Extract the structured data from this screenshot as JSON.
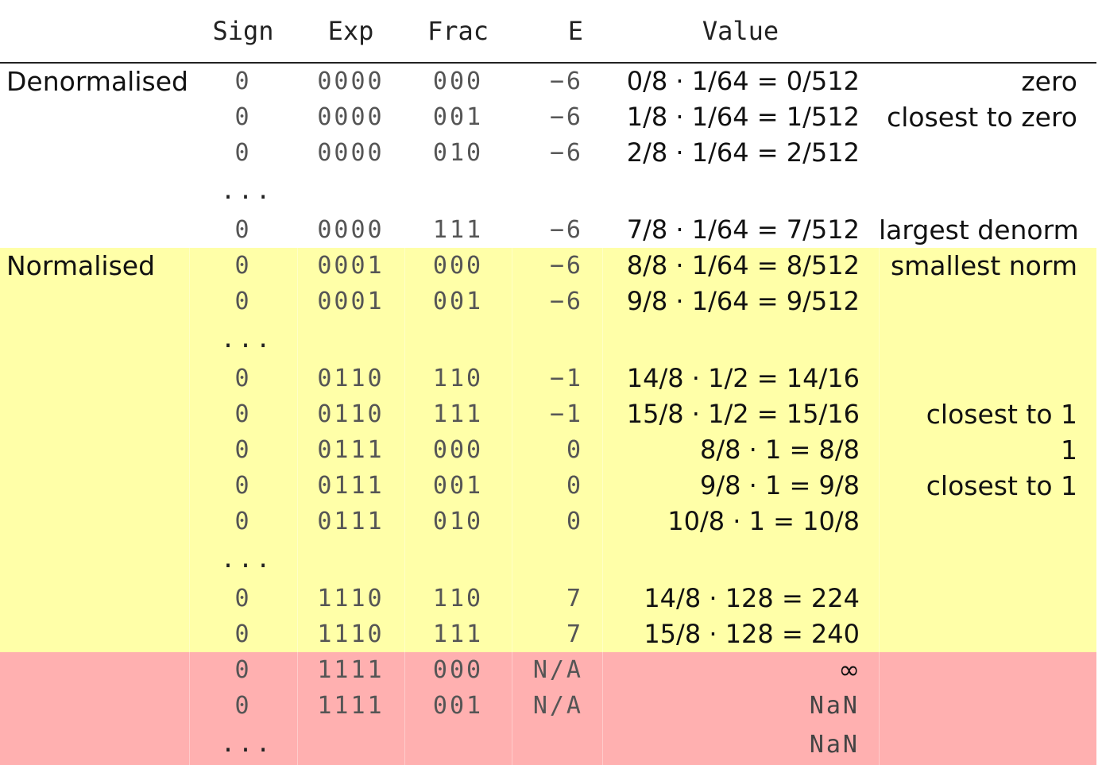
{
  "header": {
    "sign": "Sign",
    "exp": "Exp",
    "frac": "Frac",
    "e": "E",
    "value": "Value"
  },
  "rows": [
    {
      "group": "denorm",
      "category": "Denormalised",
      "sign": "0",
      "exp": "0000",
      "frac": "000",
      "e": "−6",
      "value": "0/8 · 1/64 = 0/512",
      "note": "zero"
    },
    {
      "group": "denorm",
      "category": "",
      "sign": "0",
      "exp": "0000",
      "frac": "001",
      "e": "−6",
      "value": "1/8 · 1/64 = 1/512",
      "note": "closest to zero"
    },
    {
      "group": "denorm",
      "category": "",
      "sign": "0",
      "exp": "0000",
      "frac": "010",
      "e": "−6",
      "value": "2/8 · 1/64 = 2/512",
      "note": ""
    },
    {
      "group": "denorm",
      "ellipsis": "..."
    },
    {
      "group": "denorm",
      "category": "",
      "sign": "0",
      "exp": "0000",
      "frac": "111",
      "e": "−6",
      "value": "7/8 · 1/64 = 7/512",
      "note": "largest denorm"
    },
    {
      "group": "norm",
      "category": "Normalised",
      "sign": "0",
      "exp": "0001",
      "frac": "000",
      "e": "−6",
      "value": "8/8 · 1/64 = 8/512",
      "note": "smallest norm"
    },
    {
      "group": "norm",
      "category": "",
      "sign": "0",
      "exp": "0001",
      "frac": "001",
      "e": "−6",
      "value": "9/8 · 1/64 = 9/512",
      "note": ""
    },
    {
      "group": "norm",
      "ellipsis": "..."
    },
    {
      "group": "norm",
      "category": "",
      "sign": "0",
      "exp": "0110",
      "frac": "110",
      "e": "−1",
      "value": "14/8 · 1/2 = 14/16",
      "note": ""
    },
    {
      "group": "norm",
      "category": "",
      "sign": "0",
      "exp": "0110",
      "frac": "111",
      "e": "−1",
      "value": "15/8 · 1/2 = 15/16",
      "note": "closest to 1"
    },
    {
      "group": "norm",
      "category": "",
      "sign": "0",
      "exp": "0111",
      "frac": "000",
      "e": "0",
      "value": "8/8 · 1 = 8/8",
      "note": "1"
    },
    {
      "group": "norm",
      "category": "",
      "sign": "0",
      "exp": "0111",
      "frac": "001",
      "e": "0",
      "value": "9/8 · 1 = 9/8",
      "note": "closest to 1"
    },
    {
      "group": "norm",
      "category": "",
      "sign": "0",
      "exp": "0111",
      "frac": "010",
      "e": "0",
      "value": "10/8 · 1 = 10/8",
      "note": ""
    },
    {
      "group": "norm",
      "ellipsis": "..."
    },
    {
      "group": "norm",
      "category": "",
      "sign": "0",
      "exp": "1110",
      "frac": "110",
      "e": "7",
      "value": "14/8 · 128 = 224",
      "note": ""
    },
    {
      "group": "norm",
      "category": "",
      "sign": "0",
      "exp": "1110",
      "frac": "111",
      "e": "7",
      "value": "15/8 · 128 = 240",
      "note": ""
    },
    {
      "group": "special",
      "category": "",
      "sign": "0",
      "exp": "1111",
      "frac": "000",
      "e": "N/A",
      "value": "∞",
      "note": ""
    },
    {
      "group": "special",
      "category": "",
      "sign": "0",
      "exp": "1111",
      "frac": "001",
      "e": "N/A",
      "value": "NaN",
      "valueMono": true,
      "note": ""
    },
    {
      "group": "special",
      "ellipsis": "...",
      "value": "NaN",
      "valueMono": true
    }
  ],
  "colors": {
    "denorm": "#ffffff",
    "norm": "#ffffa8",
    "special": "#ffb0b0"
  }
}
